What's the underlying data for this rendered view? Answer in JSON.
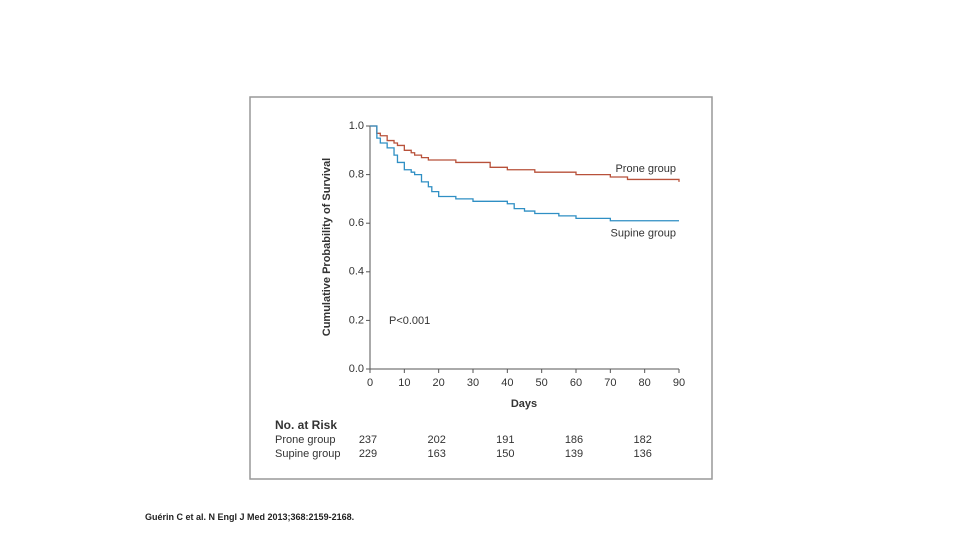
{
  "chart_data": {
    "type": "step",
    "y_label": "Cumulative Probability of Survival",
    "x_label": "Days",
    "x": [
      0,
      2,
      3,
      5,
      7,
      8,
      10,
      12,
      13,
      15,
      17,
      18,
      20,
      25,
      30,
      35,
      40,
      42,
      45,
      48,
      50,
      55,
      60,
      65,
      70,
      75,
      80,
      85,
      90
    ],
    "series": [
      {
        "name": "Prone group",
        "color": "#b8513a",
        "values": [
          1.0,
          0.97,
          0.96,
          0.94,
          0.93,
          0.92,
          0.9,
          0.89,
          0.88,
          0.87,
          0.86,
          0.86,
          0.86,
          0.85,
          0.85,
          0.83,
          0.82,
          0.82,
          0.82,
          0.81,
          0.81,
          0.81,
          0.8,
          0.8,
          0.79,
          0.78,
          0.78,
          0.78,
          0.77
        ]
      },
      {
        "name": "Supine group",
        "color": "#2f8fc4",
        "values": [
          1.0,
          0.95,
          0.93,
          0.91,
          0.88,
          0.85,
          0.82,
          0.81,
          0.8,
          0.77,
          0.75,
          0.73,
          0.71,
          0.7,
          0.69,
          0.69,
          0.68,
          0.66,
          0.65,
          0.64,
          0.64,
          0.63,
          0.62,
          0.62,
          0.61,
          0.61,
          0.61,
          0.61,
          0.61
        ]
      }
    ],
    "xlim": [
      0,
      90
    ],
    "xticks": [
      0,
      10,
      20,
      30,
      40,
      50,
      60,
      70,
      80,
      90
    ],
    "ylim": [
      0,
      1
    ],
    "yticks": [
      {
        "value": 0,
        "label": "0.0"
      },
      0.2,
      0.4,
      0.6,
      0.8,
      {
        "value": 1,
        "label": "1.0"
      }
    ],
    "annotation": "P<0.001",
    "risk_table": {
      "title": "No. at Risk",
      "rows": [
        {
          "label": "Prone group",
          "values": [
            237,
            202,
            191,
            186,
            182
          ]
        },
        {
          "label": "Supine group",
          "values": [
            229,
            163,
            150,
            139,
            136
          ]
        }
      ]
    }
  },
  "citation": "Guérin C et al. N Engl J Med 2013;368:2159-2168."
}
